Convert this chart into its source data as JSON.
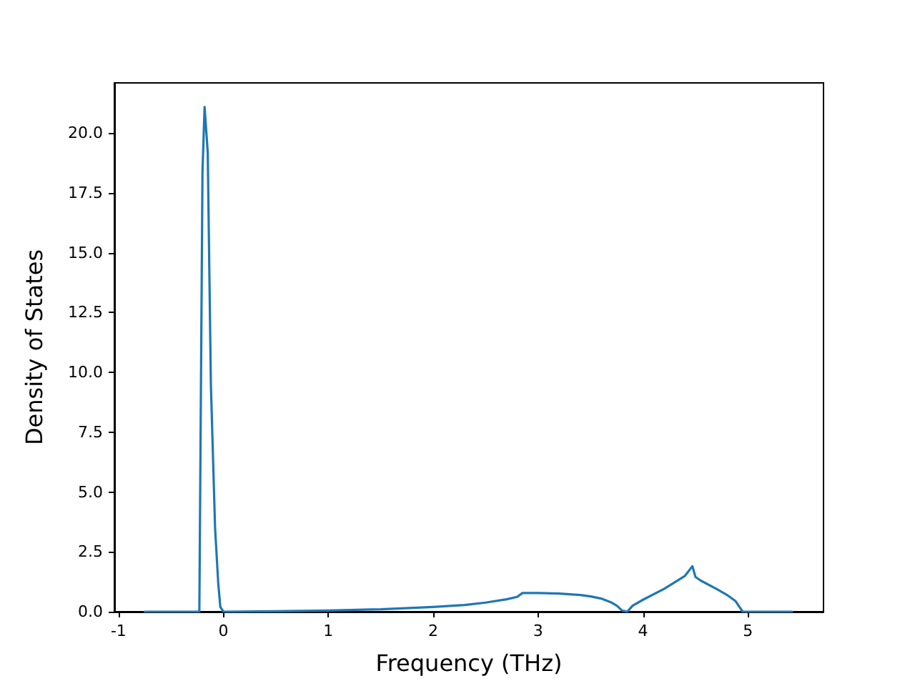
{
  "chart_data": {
    "type": "line",
    "xlabel": "Frequency (THz)",
    "ylabel": "Density of States",
    "series": [
      {
        "color": "#1f77b4",
        "x": [
          -0.75,
          -0.5,
          -0.23,
          -0.2,
          -0.18,
          -0.15,
          -0.12,
          -0.08,
          -0.05,
          -0.03,
          0,
          0.5,
          1,
          1.5,
          2,
          2.3,
          2.5,
          2.7,
          2.8,
          2.85,
          3.0,
          3.2,
          3.4,
          3.5,
          3.6,
          3.7,
          3.75,
          3.8,
          3.85,
          3.9,
          4.0,
          4.2,
          4.4,
          4.47,
          4.5,
          4.55,
          4.7,
          4.8,
          4.88,
          4.95,
          5.2,
          5.42
        ],
        "values": [
          0,
          0,
          0,
          18.4,
          21.1,
          19.2,
          9.5,
          3.5,
          1.2,
          0.2,
          0,
          0.02,
          0.05,
          0.1,
          0.2,
          0.28,
          0.38,
          0.52,
          0.62,
          0.78,
          0.78,
          0.76,
          0.7,
          0.64,
          0.55,
          0.38,
          0.25,
          0.05,
          0,
          0.25,
          0.5,
          0.95,
          1.5,
          1.9,
          1.45,
          1.3,
          0.95,
          0.7,
          0.45,
          0,
          0,
          0
        ]
      }
    ],
    "xlim": [
      -1.04,
      5.72
    ],
    "xticks": [
      -1,
      0,
      1,
      2,
      3,
      4,
      5
    ],
    "ylim": [
      0,
      22.1
    ],
    "yticks": [
      {
        "value": 0,
        "label": "0.0"
      },
      {
        "value": 2.5,
        "label": "2.5"
      },
      {
        "value": 5,
        "label": "5.0"
      },
      {
        "value": 7.5,
        "label": "7.5"
      },
      {
        "value": 10,
        "label": "10.0"
      },
      {
        "value": 12.5,
        "label": "12.5"
      },
      {
        "value": 15,
        "label": "15.0"
      },
      {
        "value": 17.5,
        "label": "17.5"
      },
      {
        "value": 20,
        "label": "20.0"
      }
    ],
    "marker": "none",
    "line_style": "solid"
  }
}
